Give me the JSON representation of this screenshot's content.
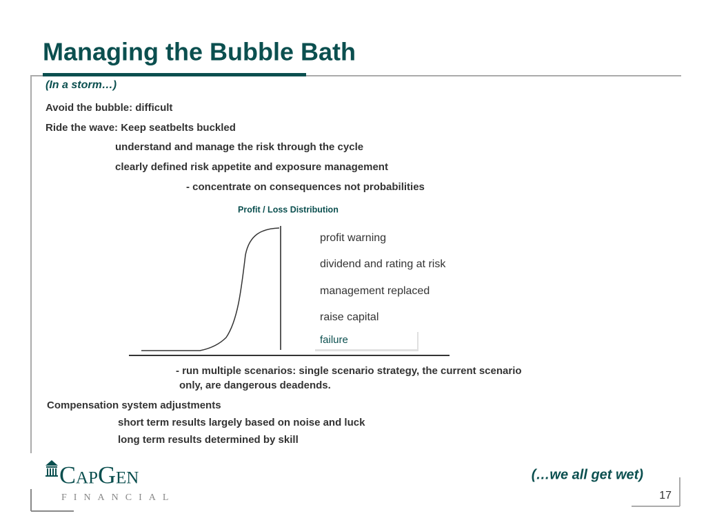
{
  "header": {
    "title": "Managing the Bubble Bath",
    "subtitle": "(In a storm…)"
  },
  "bullets": [
    "Avoid the bubble:  difficult",
    "Ride the wave:  Keep seatbelts buckled",
    "understand and manage the risk through the cycle",
    "clearly defined risk appetite and exposure management",
    "-  concentrate on consequences not probabilities"
  ],
  "diagram": {
    "title": "Profit / Loss Distribution",
    "labels": [
      "profit warning",
      "dividend and rating at risk",
      "management replaced",
      "raise capital",
      "failure"
    ]
  },
  "scenarios": [
    "- run multiple scenarios: single scenario strategy, the current scenario",
    "only, are dangerous deadends."
  ],
  "compensation": {
    "heading": "Compensation system adjustments",
    "items": [
      "short term results largely based on noise and luck",
      "long term results determined by skill"
    ]
  },
  "footer": {
    "tagline": "(…we all get wet)",
    "page": "17",
    "logo": "CapGen",
    "logo_sub": "FINANCIAL"
  }
}
